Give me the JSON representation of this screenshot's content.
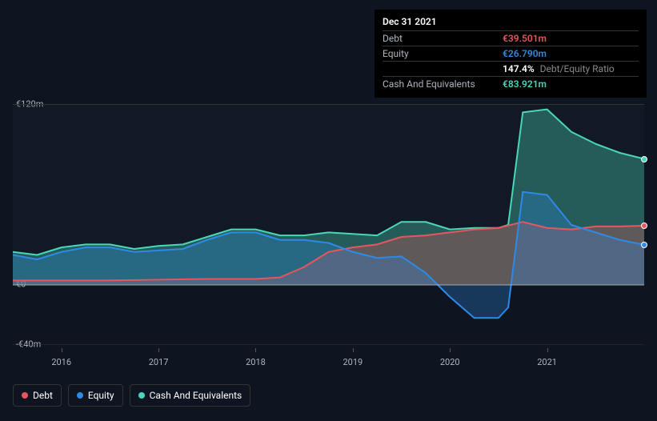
{
  "tooltip": {
    "date": "Dec 31 2021",
    "rows": [
      {
        "label": "Debt",
        "value": "€39.501m",
        "color": "#e8555f"
      },
      {
        "label": "Equity",
        "value": "€26.790m",
        "color": "#2e8ae6"
      },
      {
        "label": "",
        "value": "147.4%",
        "extra": "Debt/Equity Ratio",
        "color": "#ffffff"
      },
      {
        "label": "Cash And Equivalents",
        "value": "€83.921m",
        "color": "#4ad6b8"
      }
    ]
  },
  "chart": {
    "type": "area",
    "background_color": "#0e1420",
    "plot_bg": "rgba(20,28,40,0.5)",
    "grid_color": "#333333",
    "ylim": [
      -40,
      120
    ],
    "yticks": [
      {
        "v": 120,
        "label": "€120m"
      },
      {
        "v": 0,
        "label": "€0"
      },
      {
        "v": -40,
        "label": "-€40m"
      }
    ],
    "xrange": [
      2015.5,
      2022.0
    ],
    "xticks": [
      2016,
      2017,
      2018,
      2019,
      2020,
      2021
    ],
    "series": [
      {
        "name": "Cash And Equivalents",
        "color": "#4ad6b8",
        "fill_opacity": 0.35,
        "stroke_width": 2,
        "points": [
          [
            2015.5,
            22
          ],
          [
            2015.75,
            20
          ],
          [
            2016.0,
            25
          ],
          [
            2016.25,
            27
          ],
          [
            2016.5,
            27
          ],
          [
            2016.75,
            24
          ],
          [
            2017.0,
            26
          ],
          [
            2017.25,
            27
          ],
          [
            2017.5,
            32
          ],
          [
            2017.75,
            37
          ],
          [
            2018.0,
            37
          ],
          [
            2018.25,
            33
          ],
          [
            2018.5,
            33
          ],
          [
            2018.75,
            35
          ],
          [
            2019.0,
            34
          ],
          [
            2019.25,
            33
          ],
          [
            2019.5,
            42
          ],
          [
            2019.75,
            42
          ],
          [
            2020.0,
            37
          ],
          [
            2020.25,
            38
          ],
          [
            2020.5,
            38
          ],
          [
            2020.6,
            40
          ],
          [
            2020.75,
            115
          ],
          [
            2021.0,
            117
          ],
          [
            2021.25,
            102
          ],
          [
            2021.5,
            94
          ],
          [
            2021.75,
            88
          ],
          [
            2022.0,
            84
          ]
        ]
      },
      {
        "name": "Debt",
        "color": "#e8555f",
        "fill_opacity": 0.3,
        "stroke_width": 2,
        "points": [
          [
            2015.5,
            3
          ],
          [
            2016.0,
            3
          ],
          [
            2016.5,
            3
          ],
          [
            2017.0,
            3.5
          ],
          [
            2017.5,
            4
          ],
          [
            2018.0,
            4
          ],
          [
            2018.25,
            5
          ],
          [
            2018.5,
            12
          ],
          [
            2018.75,
            22
          ],
          [
            2019.0,
            25
          ],
          [
            2019.25,
            27
          ],
          [
            2019.5,
            32
          ],
          [
            2019.75,
            33
          ],
          [
            2020.0,
            35
          ],
          [
            2020.25,
            37
          ],
          [
            2020.5,
            38
          ],
          [
            2020.75,
            42
          ],
          [
            2021.0,
            38
          ],
          [
            2021.25,
            37
          ],
          [
            2021.5,
            39
          ],
          [
            2021.75,
            39
          ],
          [
            2022.0,
            39.5
          ]
        ]
      },
      {
        "name": "Equity",
        "color": "#2e8ae6",
        "fill_opacity": 0.3,
        "stroke_width": 2,
        "points": [
          [
            2015.5,
            20
          ],
          [
            2015.75,
            17
          ],
          [
            2016.0,
            22
          ],
          [
            2016.25,
            25
          ],
          [
            2016.5,
            25
          ],
          [
            2016.75,
            22
          ],
          [
            2017.0,
            23
          ],
          [
            2017.25,
            24
          ],
          [
            2017.5,
            30
          ],
          [
            2017.75,
            35
          ],
          [
            2018.0,
            35
          ],
          [
            2018.25,
            30
          ],
          [
            2018.5,
            30
          ],
          [
            2018.75,
            28
          ],
          [
            2019.0,
            22
          ],
          [
            2019.25,
            18
          ],
          [
            2019.5,
            19
          ],
          [
            2019.75,
            8
          ],
          [
            2020.0,
            -8
          ],
          [
            2020.25,
            -22
          ],
          [
            2020.5,
            -22
          ],
          [
            2020.6,
            -15
          ],
          [
            2020.75,
            62
          ],
          [
            2021.0,
            60
          ],
          [
            2021.25,
            40
          ],
          [
            2021.5,
            35
          ],
          [
            2021.75,
            30
          ],
          [
            2022.0,
            26.8
          ]
        ]
      }
    ],
    "markers": [
      {
        "series": "Cash And Equivalents",
        "x": 2022.0,
        "y": 84,
        "color": "#4ad6b8"
      },
      {
        "series": "Debt",
        "x": 2022.0,
        "y": 39.5,
        "color": "#e8555f"
      },
      {
        "series": "Equity",
        "x": 2022.0,
        "y": 26.8,
        "color": "#2e8ae6"
      }
    ]
  },
  "legend": [
    {
      "label": "Debt",
      "color": "#e8555f"
    },
    {
      "label": "Equity",
      "color": "#2e8ae6"
    },
    {
      "label": "Cash And Equivalents",
      "color": "#4ad6b8"
    }
  ]
}
